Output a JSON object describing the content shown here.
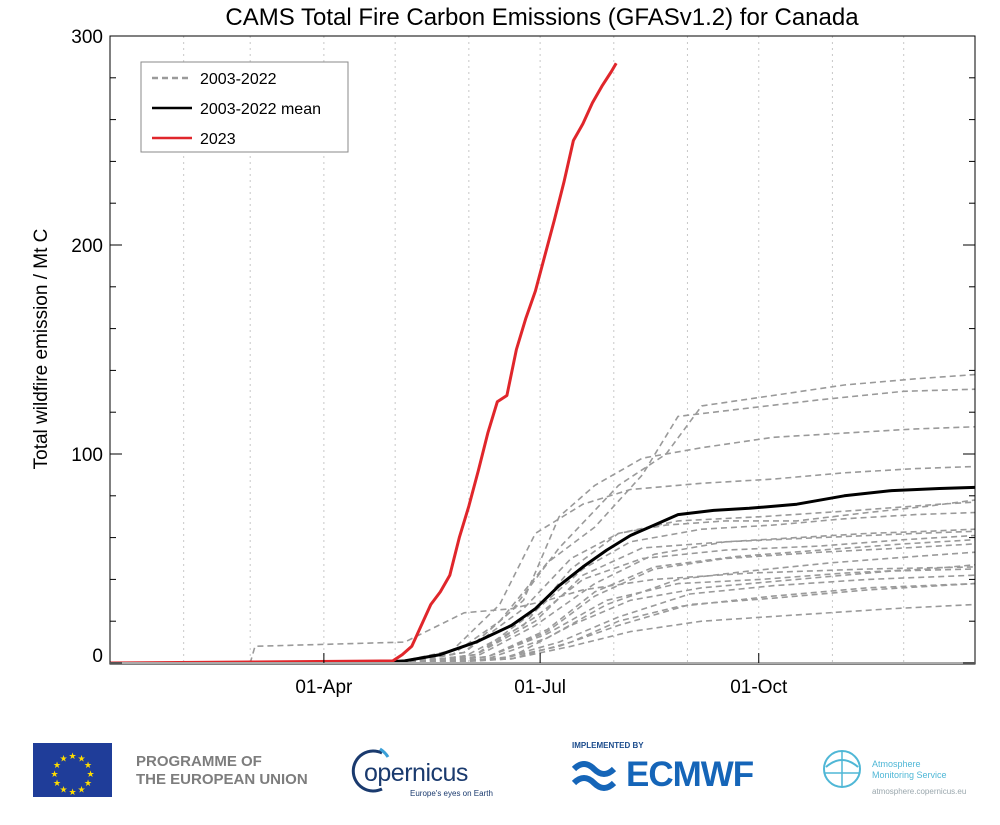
{
  "chart_data": {
    "type": "line",
    "title": "CAMS Total Fire Carbon Emissions (GFASv1.2) for Canada",
    "xlabel": "",
    "ylabel": "Total wildfire emission / Mt C",
    "x_units": "day of year",
    "xlim": [
      1,
      365
    ],
    "ylim": [
      0,
      300
    ],
    "yticks": [
      0,
      100,
      200,
      300
    ],
    "xticks": [
      {
        "day": 91,
        "label": "01-Apr"
      },
      {
        "day": 182,
        "label": "01-Jul"
      },
      {
        "day": 274,
        "label": "01-Oct"
      }
    ],
    "month_gridlines": [
      32,
      60,
      91,
      121,
      152,
      182,
      213,
      244,
      274,
      305,
      335
    ],
    "legend": {
      "position": "top-left",
      "entries": [
        {
          "label": "2003-2022",
          "style": "dashed",
          "color": "#9a9a9a"
        },
        {
          "label": "2003-2022 mean",
          "style": "solid",
          "color": "#000000"
        },
        {
          "label": "2023",
          "style": "solid",
          "color": "#e0262b"
        }
      ]
    },
    "series": [
      {
        "name": "2023",
        "color": "#e0262b",
        "style": "solid",
        "x": [
          1,
          60,
          120,
          124,
          128,
          132,
          136,
          140,
          144,
          148,
          152,
          156,
          160,
          164,
          168,
          172,
          176,
          180,
          184,
          188,
          192,
          196,
          200,
          204,
          208,
          212,
          214
        ],
        "y": [
          0,
          0.5,
          1,
          4,
          8,
          18,
          28,
          34,
          42,
          60,
          75,
          92,
          110,
          125,
          128,
          150,
          165,
          178,
          195,
          212,
          230,
          250,
          258,
          268,
          276,
          283,
          287
        ]
      },
      {
        "name": "2003-2022 mean",
        "color": "#000000",
        "style": "solid",
        "x": [
          1,
          110,
          125,
          140,
          155,
          170,
          180,
          190,
          200,
          210,
          220,
          230,
          240,
          255,
          270,
          290,
          310,
          330,
          350,
          365
        ],
        "y": [
          0,
          0,
          1,
          4,
          10,
          18,
          26,
          37,
          46,
          54,
          61,
          66,
          71,
          73,
          74,
          76,
          80,
          82.5,
          83.5,
          84
        ]
      },
      {
        "name": "2003-2022",
        "style": "dashed",
        "color": "#9a9a9a",
        "x": [
          1,
          120,
          150,
          175,
          195,
          215,
          235,
          260,
          290,
          320,
          345,
          365
        ],
        "y": [
          0,
          0,
          3,
          18,
          45,
          62,
          66,
          68,
          68,
          72,
          75,
          78
        ]
      },
      {
        "name": "2003-2022",
        "style": "dashed",
        "color": "#9a9a9a",
        "x": [
          1,
          120,
          145,
          165,
          185,
          205,
          225,
          240,
          270,
          300,
          335,
          365
        ],
        "y": [
          0,
          0,
          4,
          20,
          48,
          65,
          90,
          118,
          122,
          126,
          130,
          131
        ]
      },
      {
        "name": "2003-2022",
        "style": "dashed",
        "color": "#9a9a9a",
        "x": [
          1,
          125,
          150,
          170,
          190,
          215,
          235,
          250,
          280,
          310,
          340,
          365
        ],
        "y": [
          0,
          0,
          5,
          25,
          55,
          85,
          100,
          123,
          128,
          133,
          136,
          138
        ]
      },
      {
        "name": "2003-2022",
        "style": "dashed",
        "color": "#9a9a9a",
        "x": [
          1,
          120,
          150,
          175,
          190,
          205,
          225,
          250,
          280,
          310,
          340,
          365
        ],
        "y": [
          0,
          0,
          5,
          30,
          70,
          85,
          98,
          103,
          108,
          110,
          112,
          113
        ]
      },
      {
        "name": "2003-2022",
        "style": "dashed",
        "color": "#9a9a9a",
        "x": [
          1,
          120,
          145,
          165,
          180,
          200,
          220,
          250,
          280,
          310,
          340,
          365
        ],
        "y": [
          0,
          0,
          6,
          28,
          62,
          76,
          83,
          86,
          88,
          91,
          93,
          94
        ]
      },
      {
        "name": "2003-2022",
        "style": "dashed",
        "color": "#9a9a9a",
        "x": [
          1,
          125,
          155,
          180,
          200,
          220,
          250,
          280,
          310,
          340,
          365
        ],
        "y": [
          0,
          0,
          4,
          25,
          45,
          58,
          64,
          66,
          69,
          71,
          72
        ]
      },
      {
        "name": "2003-2022",
        "style": "dashed",
        "color": "#9a9a9a",
        "x": [
          1,
          125,
          155,
          180,
          205,
          230,
          260,
          290,
          320,
          345,
          365
        ],
        "y": [
          0,
          0,
          3,
          18,
          38,
          52,
          58,
          60,
          62,
          63,
          64
        ]
      },
      {
        "name": "2003-2022",
        "style": "dashed",
        "color": "#9a9a9a",
        "x": [
          1,
          125,
          155,
          180,
          200,
          225,
          260,
          300,
          335,
          365
        ],
        "y": [
          0,
          0,
          4,
          22,
          40,
          50,
          54,
          56,
          59,
          61
        ]
      },
      {
        "name": "2003-2022",
        "style": "dashed",
        "color": "#9a9a9a",
        "x": [
          1,
          130,
          160,
          185,
          205,
          230,
          260,
          300,
          335,
          365
        ],
        "y": [
          0,
          0,
          3,
          15,
          32,
          45,
          50,
          53,
          55,
          57
        ]
      },
      {
        "name": "2003-2022",
        "style": "dashed",
        "color": "#9a9a9a",
        "x": [
          1,
          130,
          160,
          185,
          210,
          240,
          270,
          305,
          340,
          365
        ],
        "y": [
          0,
          0,
          2,
          12,
          28,
          40,
          44,
          48,
          51,
          53
        ]
      },
      {
        "name": "2003-2022",
        "style": "dashed",
        "color": "#9a9a9a",
        "x": [
          1,
          130,
          160,
          185,
          210,
          240,
          275,
          310,
          345,
          365
        ],
        "y": [
          0,
          0,
          3,
          14,
          30,
          38,
          40,
          43,
          45,
          47
        ]
      },
      {
        "name": "2003-2022",
        "style": "dashed",
        "color": "#9a9a9a",
        "x": [
          1,
          135,
          165,
          190,
          215,
          245,
          280,
          320,
          365
        ],
        "y": [
          0,
          0,
          2,
          10,
          22,
          33,
          37,
          40,
          42
        ]
      },
      {
        "name": "2003-2022",
        "style": "dashed",
        "color": "#9a9a9a",
        "x": [
          1,
          135,
          165,
          190,
          215,
          245,
          280,
          320,
          365
        ],
        "y": [
          0,
          0,
          2,
          8,
          18,
          28,
          31,
          35,
          38
        ]
      },
      {
        "name": "2003-2022",
        "style": "dashed",
        "color": "#9a9a9a",
        "x": [
          1,
          135,
          170,
          195,
          220,
          250,
          290,
          330,
          365
        ],
        "y": [
          0,
          0,
          2,
          8,
          15,
          20,
          23,
          26,
          28
        ]
      },
      {
        "name": "2003-2022",
        "style": "dashed",
        "color": "#9a9a9a",
        "x": [
          1,
          60,
          62,
          125,
          150,
          170,
          185,
          200,
          230,
          270,
          320,
          365
        ],
        "y": [
          0,
          0,
          8,
          10,
          24,
          26,
          30,
          35,
          40,
          43,
          45,
          46
        ]
      },
      {
        "name": "2003-2022",
        "style": "dashed",
        "color": "#9a9a9a",
        "x": [
          1,
          140,
          170,
          195,
          220,
          250,
          290,
          330,
          365
        ],
        "y": [
          0,
          0,
          3,
          18,
          30,
          36,
          40,
          44,
          45
        ]
      },
      {
        "name": "2003-2022",
        "style": "dashed",
        "color": "#9a9a9a",
        "x": [
          1,
          140,
          170,
          195,
          215,
          240,
          280,
          320,
          365
        ],
        "y": [
          0,
          0,
          2,
          10,
          20,
          27,
          32,
          36,
          38
        ]
      },
      {
        "name": "2003-2022",
        "style": "dashed",
        "color": "#9a9a9a",
        "x": [
          1,
          125,
          155,
          180,
          200,
          225,
          260,
          300,
          340,
          365
        ],
        "y": [
          0,
          0,
          4,
          20,
          42,
          55,
          58,
          60,
          62,
          63
        ]
      },
      {
        "name": "2003-2022",
        "style": "dashed",
        "color": "#9a9a9a",
        "x": [
          1,
          130,
          160,
          185,
          205,
          230,
          265,
          300,
          335,
          365
        ],
        "y": [
          0,
          0,
          3,
          16,
          34,
          46,
          51,
          54,
          57,
          59
        ]
      },
      {
        "name": "2003-2022",
        "style": "dashed",
        "color": "#9a9a9a",
        "x": [
          1,
          120,
          150,
          175,
          195,
          215,
          240,
          275,
          315,
          350,
          365
        ],
        "y": [
          0,
          0,
          5,
          26,
          50,
          62,
          68,
          70,
          73,
          76,
          77
        ]
      }
    ]
  },
  "logos": {
    "eu_line1": "PROGRAMME OF",
    "eu_line2": "THE EUROPEAN UNION",
    "copernicus_name": "opernicus",
    "copernicus_tagline": "Europe's eyes on Earth",
    "ecmwf_implemented": "IMPLEMENTED BY",
    "ecmwf_name": "ECMWF",
    "ams_line1": "Atmosphere",
    "ams_line2": "Monitoring Service",
    "ams_url": "atmosphere.copernicus.eu"
  }
}
